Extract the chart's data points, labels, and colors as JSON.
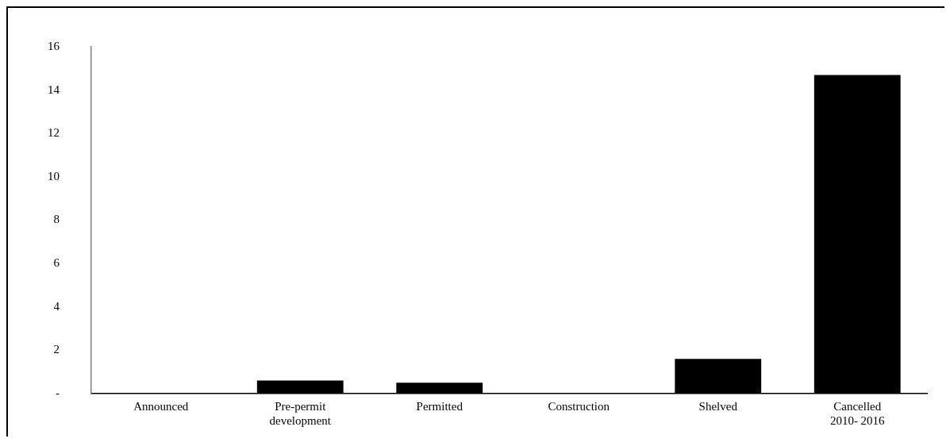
{
  "chart_data": {
    "type": "bar",
    "categories": [
      "Announced",
      "Pre-permit development",
      "Permitted",
      "Construction",
      "Shelved",
      "Cancelled 2010- 2016"
    ],
    "values": [
      0,
      0.6,
      0.5,
      0,
      1.6,
      14.7
    ],
    "color": "#000000",
    "ylim": [
      0,
      16
    ],
    "yticks": [
      {
        "value": 0,
        "label": "-"
      },
      2,
      4,
      6,
      8,
      10,
      12,
      14,
      16
    ],
    "grid": false,
    "legend": false
  }
}
